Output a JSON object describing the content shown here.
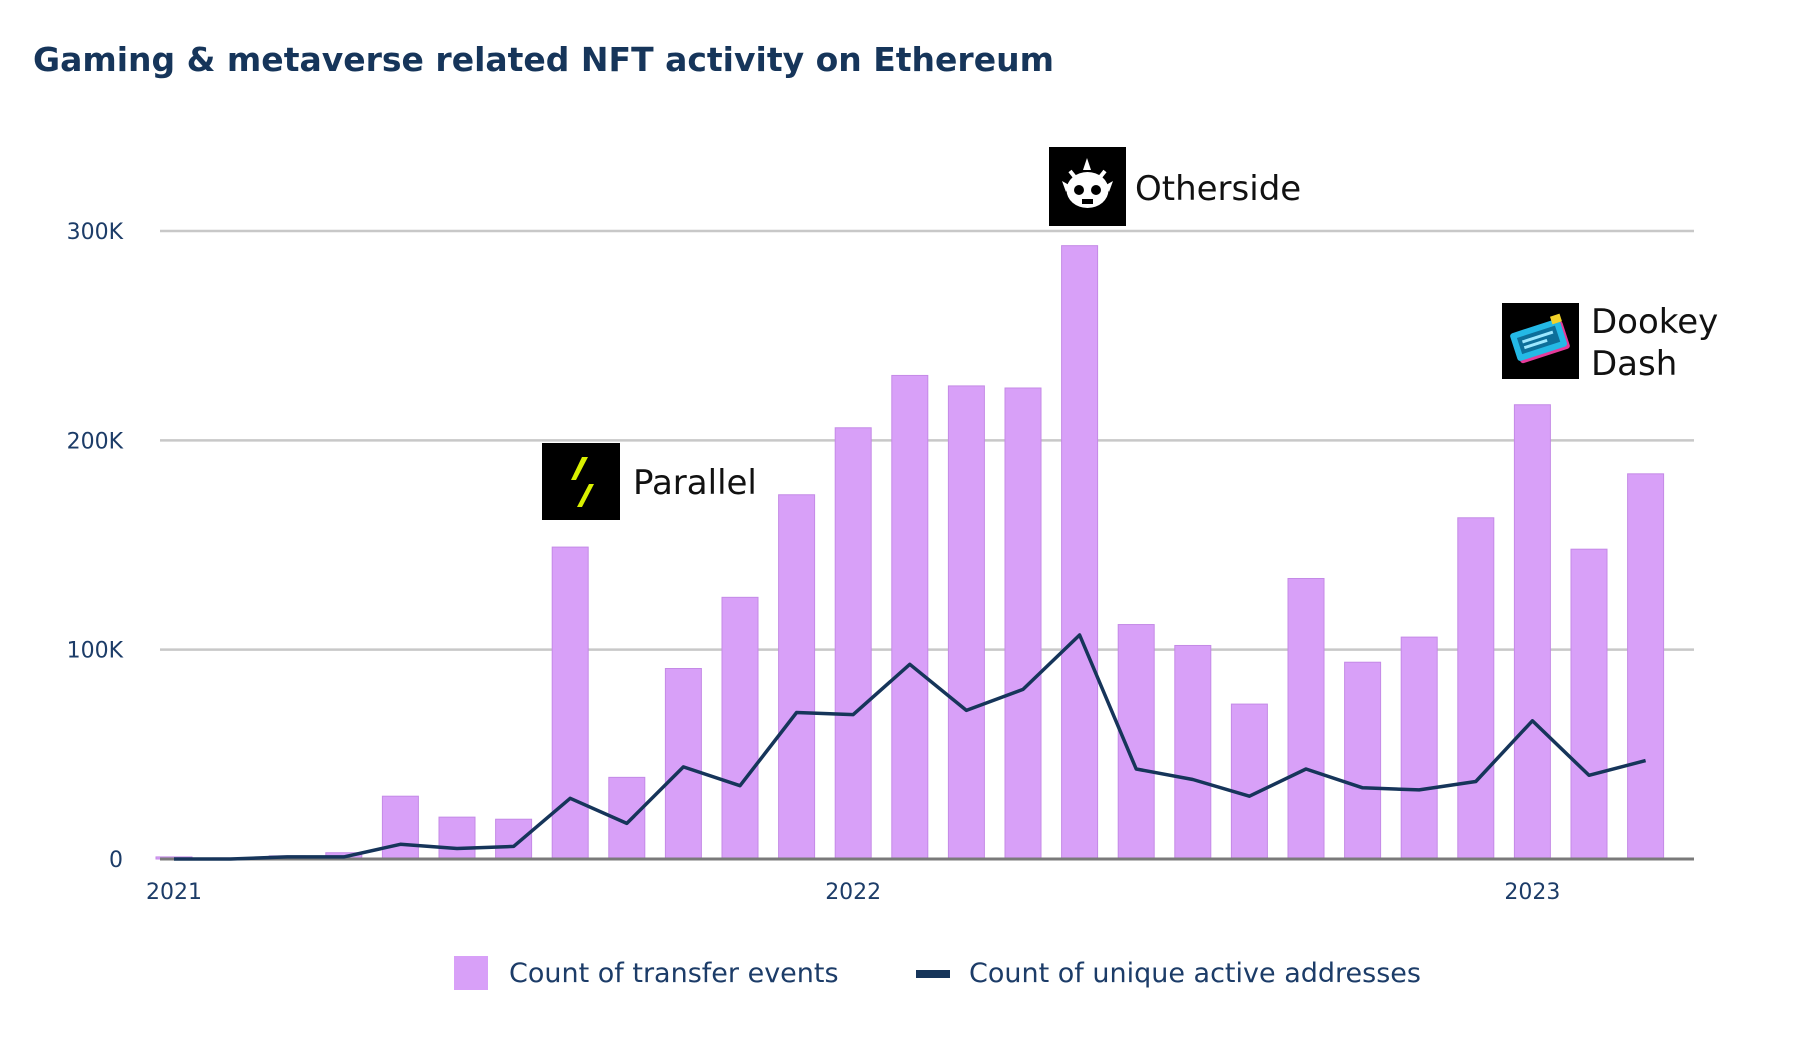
{
  "chart_data": {
    "type": "bar",
    "title": "Gaming & metaverse related NFT activity on Ethereum",
    "xlabel": "",
    "ylabel": "",
    "ylim": [
      0,
      300000
    ],
    "yticks": [
      {
        "value": 0,
        "label": "0"
      },
      {
        "value": 100000,
        "label": "100K"
      },
      {
        "value": 200000,
        "label": "200K"
      },
      {
        "value": 300000,
        "label": "300K"
      }
    ],
    "x_tick_labels": [
      {
        "index": 0,
        "label": "2021"
      },
      {
        "index": 12,
        "label": "2022"
      },
      {
        "index": 24,
        "label": "2023"
      }
    ],
    "categories": [
      "2021-01",
      "2021-02",
      "2021-03",
      "2021-04",
      "2021-05",
      "2021-06",
      "2021-07",
      "2021-08",
      "2021-09",
      "2021-10",
      "2021-11",
      "2021-12",
      "2022-01",
      "2022-02",
      "2022-03",
      "2022-04",
      "2022-05",
      "2022-06",
      "2022-07",
      "2022-08",
      "2022-09",
      "2022-10",
      "2022-11",
      "2022-12",
      "2023-01",
      "2023-02",
      "2023-03"
    ],
    "grid": true,
    "legend_position": "bottom",
    "series": [
      {
        "name": "Count of transfer events",
        "kind": "bar",
        "color": "#d8a0f8",
        "values": [
          1000,
          500,
          1500,
          3000,
          30000,
          20000,
          19000,
          149000,
          39000,
          91000,
          125000,
          174000,
          206000,
          231000,
          226000,
          225000,
          293000,
          112000,
          102000,
          74000,
          134000,
          94000,
          106000,
          163000,
          217000,
          148000,
          184000
        ]
      },
      {
        "name": "Count of unique active addresses",
        "kind": "line",
        "color": "#16355a",
        "values": [
          0,
          0,
          1000,
          1000,
          7000,
          5000,
          6000,
          29000,
          17000,
          44000,
          35000,
          70000,
          69000,
          93000,
          71000,
          81000,
          107000,
          43000,
          38000,
          30000,
          43000,
          34000,
          33000,
          37000,
          66000,
          40000,
          47000
        ]
      }
    ],
    "annotations": [
      {
        "label": "Parallel",
        "index": 7,
        "icon": "parallel-logo-icon"
      },
      {
        "label": "Otherside",
        "index": 16,
        "icon": "otherside-logo-icon"
      },
      {
        "label": "Dookey\nDash",
        "lines": [
          "Dookey",
          "Dash"
        ],
        "index": 24,
        "icon": "dookey-dash-logo-icon"
      }
    ]
  },
  "legend": {
    "bar_label": "Count of transfer events",
    "line_label": "Count of unique active addresses"
  },
  "colors": {
    "bar": "#d8a0f8",
    "line": "#16355a",
    "grid": "#c8c8c8",
    "axis": "#7a7a7a",
    "title": "#16355a",
    "parallel_accent": "#d9f000"
  }
}
